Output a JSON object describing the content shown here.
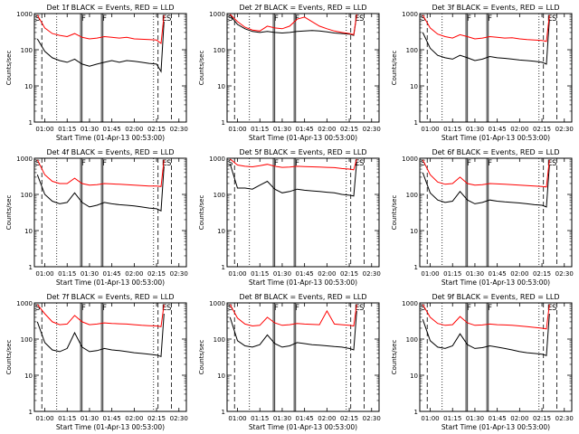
{
  "common": {
    "ylabel": "Counts/sec",
    "xlabel": "Start Time (01-Apr-13 00:53:00)",
    "x_ticks": [
      "01:00",
      "01:15",
      "01:30",
      "01:45",
      "02:00",
      "02:15",
      "02:30"
    ],
    "y_ticks": [
      "1",
      "10",
      "100",
      "1000"
    ],
    "markers": [
      {
        "label": "S",
        "t": "00:53"
      },
      {
        "label": "F",
        "t": "01:24"
      },
      {
        "label": "F",
        "t": "01:38"
      },
      {
        "label": "E",
        "t": "02:18"
      },
      {
        "label": "S",
        "t": "02:21"
      }
    ],
    "colors": {
      "events": "#000000",
      "lld": "#ff0000"
    }
  },
  "chart_data": [
    {
      "type": "line",
      "title": "Det 1f BLACK = Events, RED = LLD",
      "xlim": [
        "00:53",
        "02:35"
      ],
      "ylim": [
        1,
        1000
      ],
      "yscale": "log",
      "series": [
        {
          "name": "Events",
          "x": [
            "00:55",
            "01:00",
            "01:05",
            "01:10",
            "01:15",
            "01:20",
            "01:25",
            "01:30",
            "01:35",
            "01:40",
            "01:45",
            "01:50",
            "01:55",
            "02:00",
            "02:05",
            "02:10",
            "02:15",
            "02:18",
            "02:20"
          ],
          "values": [
            200,
            90,
            60,
            50,
            45,
            55,
            40,
            35,
            40,
            45,
            50,
            45,
            50,
            48,
            45,
            42,
            40,
            25,
            600
          ]
        },
        {
          "name": "LLD",
          "x": [
            "00:55",
            "01:00",
            "01:05",
            "01:10",
            "01:15",
            "01:20",
            "01:25",
            "01:30",
            "01:35",
            "01:40",
            "01:45",
            "01:50",
            "01:55",
            "02:00",
            "02:05",
            "02:10",
            "02:15",
            "02:18",
            "02:20"
          ],
          "values": [
            900,
            400,
            280,
            250,
            230,
            280,
            220,
            200,
            210,
            230,
            220,
            210,
            220,
            200,
            195,
            190,
            185,
            150,
            900
          ]
        }
      ]
    },
    {
      "type": "line",
      "title": "Det 2f BLACK = Events, RED = LLD",
      "xlim": [
        "00:53",
        "02:35"
      ],
      "ylim": [
        1,
        1000
      ],
      "yscale": "log",
      "series": [
        {
          "name": "Events",
          "x": [
            "00:55",
            "01:00",
            "01:05",
            "01:10",
            "01:15",
            "01:20",
            "01:25",
            "01:30",
            "01:35",
            "01:40",
            "01:45",
            "01:50",
            "01:55",
            "02:00",
            "02:05",
            "02:10",
            "02:15",
            "02:18",
            "02:20"
          ],
          "values": [
            900,
            500,
            380,
            320,
            300,
            320,
            300,
            290,
            300,
            320,
            330,
            340,
            330,
            310,
            290,
            280,
            270,
            250,
            900
          ]
        },
        {
          "name": "LLD",
          "x": [
            "00:55",
            "01:00",
            "01:05",
            "01:10",
            "01:15",
            "01:20",
            "01:25",
            "01:30",
            "01:35",
            "01:40",
            "01:45",
            "01:50",
            "01:55",
            "02:00",
            "02:05",
            "02:10",
            "02:15",
            "02:18",
            "02:20"
          ],
          "values": [
            950,
            600,
            420,
            350,
            330,
            450,
            400,
            380,
            450,
            700,
            800,
            600,
            450,
            380,
            330,
            300,
            280,
            260,
            950
          ]
        }
      ]
    },
    {
      "type": "line",
      "title": "Det 3f BLACK = Events, RED = LLD",
      "xlim": [
        "00:53",
        "02:35"
      ],
      "ylim": [
        1,
        1000
      ],
      "yscale": "log",
      "series": [
        {
          "name": "Events",
          "x": [
            "00:55",
            "01:00",
            "01:05",
            "01:10",
            "01:15",
            "01:20",
            "01:25",
            "01:30",
            "01:35",
            "01:40",
            "01:45",
            "01:50",
            "01:55",
            "02:00",
            "02:05",
            "02:10",
            "02:15",
            "02:18",
            "02:20"
          ],
          "values": [
            300,
            110,
            70,
            60,
            55,
            70,
            60,
            50,
            55,
            65,
            60,
            58,
            55,
            52,
            50,
            48,
            45,
            40,
            700
          ]
        },
        {
          "name": "LLD",
          "x": [
            "00:55",
            "01:00",
            "01:05",
            "01:10",
            "01:15",
            "01:20",
            "01:25",
            "01:30",
            "01:35",
            "01:40",
            "01:45",
            "01:50",
            "01:55",
            "02:00",
            "02:05",
            "02:10",
            "02:15",
            "02:18",
            "02:20"
          ],
          "values": [
            900,
            400,
            270,
            230,
            210,
            260,
            230,
            200,
            210,
            230,
            220,
            210,
            215,
            200,
            190,
            185,
            180,
            170,
            900
          ]
        }
      ]
    },
    {
      "type": "line",
      "title": "Det 4f BLACK = Events, RED = LLD",
      "xlim": [
        "00:53",
        "02:35"
      ],
      "ylim": [
        1,
        1000
      ],
      "yscale": "log",
      "series": [
        {
          "name": "Events",
          "x": [
            "00:55",
            "01:00",
            "01:05",
            "01:10",
            "01:15",
            "01:20",
            "01:25",
            "01:30",
            "01:35",
            "01:40",
            "01:45",
            "01:50",
            "01:55",
            "02:00",
            "02:05",
            "02:10",
            "02:15",
            "02:18",
            "02:20"
          ],
          "values": [
            350,
            100,
            65,
            55,
            60,
            110,
            60,
            45,
            50,
            60,
            55,
            52,
            50,
            48,
            45,
            42,
            40,
            35,
            600
          ]
        },
        {
          "name": "LLD",
          "x": [
            "00:55",
            "01:00",
            "01:05",
            "01:10",
            "01:15",
            "01:20",
            "01:25",
            "01:30",
            "01:35",
            "01:40",
            "01:45",
            "01:50",
            "01:55",
            "02:00",
            "02:05",
            "02:10",
            "02:15",
            "02:18",
            "02:20"
          ],
          "values": [
            900,
            350,
            230,
            200,
            200,
            280,
            200,
            180,
            185,
            200,
            195,
            190,
            185,
            180,
            175,
            170,
            170,
            165,
            900
          ]
        }
      ]
    },
    {
      "type": "line",
      "title": "Det 5f BLACK = Events, RED = LLD",
      "xlim": [
        "00:53",
        "02:35"
      ],
      "ylim": [
        1,
        1000
      ],
      "yscale": "log",
      "series": [
        {
          "name": "Events",
          "x": [
            "00:55",
            "01:00",
            "01:05",
            "01:10",
            "01:15",
            "01:20",
            "01:25",
            "01:30",
            "01:35",
            "01:40",
            "01:45",
            "01:50",
            "01:55",
            "02:00",
            "02:05",
            "02:10",
            "02:15",
            "02:18",
            "02:20"
          ],
          "values": [
            700,
            150,
            150,
            140,
            180,
            230,
            140,
            110,
            120,
            140,
            130,
            125,
            120,
            115,
            110,
            100,
            95,
            90,
            800
          ]
        },
        {
          "name": "LLD",
          "x": [
            "00:55",
            "01:00",
            "01:05",
            "01:10",
            "01:15",
            "01:20",
            "01:25",
            "01:30",
            "01:35",
            "01:40",
            "01:45",
            "01:50",
            "01:55",
            "02:00",
            "02:05",
            "02:10",
            "02:15",
            "02:18",
            "02:20"
          ],
          "values": [
            950,
            650,
            600,
            580,
            620,
            680,
            600,
            560,
            570,
            600,
            590,
            580,
            570,
            560,
            550,
            520,
            500,
            480,
            950
          ]
        }
      ]
    },
    {
      "type": "line",
      "title": "Det 6f BLACK = Events, RED = LLD",
      "xlim": [
        "00:53",
        "02:35"
      ],
      "ylim": [
        1,
        1000
      ],
      "yscale": "log",
      "series": [
        {
          "name": "Events",
          "x": [
            "00:55",
            "01:00",
            "01:05",
            "01:10",
            "01:15",
            "01:20",
            "01:25",
            "01:30",
            "01:35",
            "01:40",
            "01:45",
            "01:50",
            "01:55",
            "02:00",
            "02:05",
            "02:10",
            "02:15",
            "02:18",
            "02:20"
          ],
          "values": [
            400,
            110,
            70,
            60,
            65,
            120,
            70,
            55,
            60,
            70,
            65,
            62,
            60,
            58,
            55,
            52,
            50,
            45,
            650
          ]
        },
        {
          "name": "LLD",
          "x": [
            "00:55",
            "01:00",
            "01:05",
            "01:10",
            "01:15",
            "01:20",
            "01:25",
            "01:30",
            "01:35",
            "01:40",
            "01:45",
            "01:50",
            "01:55",
            "02:00",
            "02:05",
            "02:10",
            "02:15",
            "02:18",
            "02:20"
          ],
          "values": [
            900,
            350,
            220,
            190,
            200,
            300,
            200,
            180,
            185,
            200,
            195,
            190,
            185,
            180,
            175,
            170,
            165,
            160,
            900
          ]
        }
      ]
    },
    {
      "type": "line",
      "title": "Det 7f BLACK = Events, RED = LLD",
      "xlim": [
        "00:53",
        "02:35"
      ],
      "ylim": [
        1,
        1000
      ],
      "yscale": "log",
      "series": [
        {
          "name": "Events",
          "x": [
            "00:55",
            "01:00",
            "01:05",
            "01:10",
            "01:15",
            "01:20",
            "01:25",
            "01:30",
            "01:35",
            "01:40",
            "01:45",
            "01:50",
            "01:55",
            "02:00",
            "02:05",
            "02:10",
            "02:15",
            "02:18",
            "02:20"
          ],
          "values": [
            300,
            80,
            50,
            45,
            55,
            150,
            60,
            45,
            48,
            55,
            50,
            48,
            45,
            42,
            40,
            38,
            36,
            33,
            500
          ]
        },
        {
          "name": "LLD",
          "x": [
            "00:55",
            "01:00",
            "01:05",
            "01:10",
            "01:15",
            "01:20",
            "01:25",
            "01:30",
            "01:35",
            "01:40",
            "01:45",
            "01:50",
            "01:55",
            "02:00",
            "02:05",
            "02:10",
            "02:15",
            "02:18",
            "02:20"
          ],
          "values": [
            900,
            500,
            300,
            250,
            260,
            450,
            300,
            250,
            260,
            280,
            270,
            265,
            260,
            250,
            240,
            235,
            230,
            220,
            900
          ]
        }
      ]
    },
    {
      "type": "line",
      "title": "Det 8f BLACK = Events, RED = LLD",
      "xlim": [
        "00:53",
        "02:35"
      ],
      "ylim": [
        1,
        1000
      ],
      "yscale": "log",
      "series": [
        {
          "name": "Events",
          "x": [
            "00:55",
            "01:00",
            "01:05",
            "01:10",
            "01:15",
            "01:20",
            "01:25",
            "01:30",
            "01:35",
            "01:40",
            "01:45",
            "01:50",
            "01:55",
            "02:00",
            "02:05",
            "02:10",
            "02:15",
            "02:18",
            "02:20"
          ],
          "values": [
            400,
            90,
            65,
            60,
            70,
            130,
            75,
            60,
            65,
            80,
            75,
            70,
            68,
            65,
            62,
            60,
            55,
            50,
            600
          ]
        },
        {
          "name": "LLD",
          "x": [
            "00:55",
            "01:00",
            "01:05",
            "01:10",
            "01:15",
            "01:20",
            "01:25",
            "01:30",
            "01:35",
            "01:40",
            "01:45",
            "01:50",
            "01:55",
            "02:00",
            "02:05",
            "02:10",
            "02:15",
            "02:18",
            "02:20"
          ],
          "values": [
            900,
            380,
            260,
            230,
            240,
            400,
            280,
            240,
            250,
            270,
            260,
            255,
            250,
            600,
            260,
            250,
            240,
            230,
            900
          ]
        }
      ]
    },
    {
      "type": "line",
      "title": "Det 9f BLACK = Events, RED = LLD",
      "xlim": [
        "00:53",
        "02:35"
      ],
      "ylim": [
        1,
        1000
      ],
      "yscale": "log",
      "series": [
        {
          "name": "Events",
          "x": [
            "00:55",
            "01:00",
            "01:05",
            "01:10",
            "01:15",
            "01:20",
            "01:25",
            "01:30",
            "01:35",
            "01:40",
            "01:45",
            "01:50",
            "01:55",
            "02:00",
            "02:05",
            "02:10",
            "02:15",
            "02:18",
            "02:20"
          ],
          "values": [
            350,
            90,
            60,
            55,
            65,
            140,
            70,
            55,
            58,
            65,
            60,
            55,
            50,
            45,
            42,
            40,
            38,
            35,
            500
          ]
        },
        {
          "name": "LLD",
          "x": [
            "00:55",
            "01:00",
            "01:05",
            "01:10",
            "01:15",
            "01:20",
            "01:25",
            "01:30",
            "01:35",
            "01:40",
            "01:45",
            "01:50",
            "01:55",
            "02:00",
            "02:05",
            "02:10",
            "02:15",
            "02:18",
            "02:20"
          ],
          "values": [
            900,
            400,
            270,
            240,
            250,
            420,
            280,
            240,
            245,
            260,
            250,
            245,
            240,
            230,
            220,
            210,
            200,
            190,
            900
          ]
        }
      ]
    }
  ]
}
